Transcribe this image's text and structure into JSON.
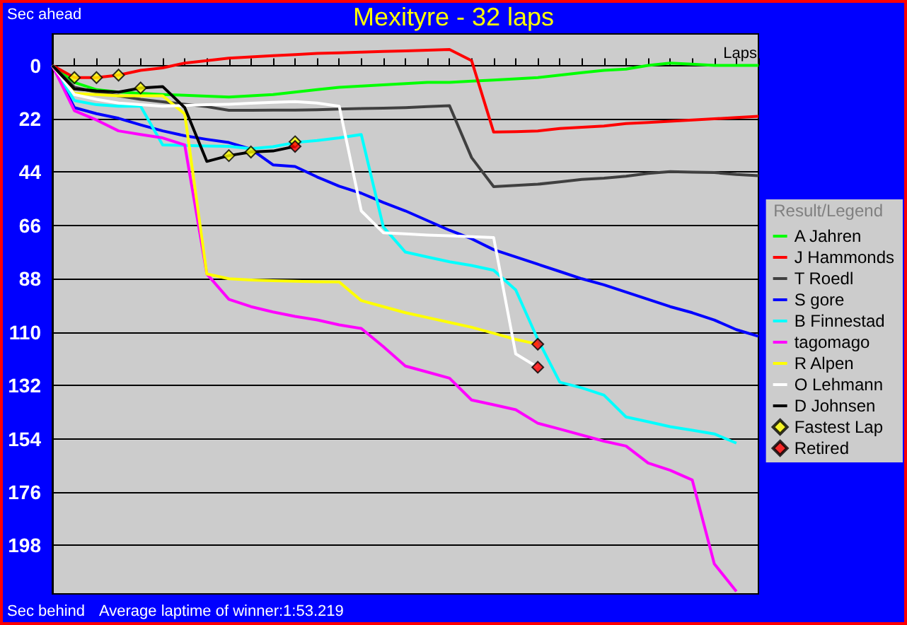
{
  "chart_data": {
    "type": "line",
    "title": "Mexityre - 32 laps",
    "ylabel": "Sec ahead",
    "xlabel": "Laps",
    "legend_title": "Result/Legend",
    "annotations": [
      "Sec behind",
      "Average laptime of winner:1:53.219"
    ],
    "categories": [
      null,
      null,
      null,
      null,
      null,
      null,
      null,
      null,
      null,
      null,
      null,
      null,
      null,
      null,
      null,
      null,
      null,
      null,
      null,
      null,
      null,
      null,
      null,
      null,
      null,
      null,
      null,
      null,
      null,
      null,
      null,
      null,
      null
    ],
    "ylim": [
      218,
      -13
    ],
    "yticks": [
      0,
      22,
      44,
      66,
      88,
      110,
      132,
      154,
      176,
      198
    ],
    "tick_labels": "y",
    "grid": "y",
    "legend": "right",
    "marker": "none",
    "line_style": "solid",
    "series": [
      {
        "name": "A Jahren",
        "color": "#00ff00",
        "values": [
          0,
          7,
          10,
          11,
          11.5,
          12,
          12.3,
          12.7,
          13,
          12.5,
          12,
          11,
          10,
          9,
          8.5,
          8,
          7.5,
          7,
          7,
          6.5,
          6,
          5.5,
          5,
          4,
          3,
          2,
          1.5,
          0,
          -1,
          -0.5,
          0,
          0,
          0
        ]
      },
      {
        "name": "J Hammonds",
        "color": "#ff0000",
        "values": [
          0,
          5,
          5,
          4,
          2,
          1,
          -1,
          -2,
          -3,
          -3.5,
          -4,
          -4.5,
          -5,
          -5.2,
          -5.5,
          -5.8,
          -6,
          -6.3,
          -6.6,
          -2,
          27.5,
          27.3,
          27,
          26,
          25.5,
          25,
          24,
          23.5,
          23,
          22.5,
          22,
          21.5,
          21
        ]
      },
      {
        "name": "T Roedl",
        "color": "#404040",
        "values": [
          0,
          9,
          11,
          12.5,
          14,
          15,
          16,
          17,
          18.5,
          18.5,
          18.4,
          18.4,
          18.3,
          18,
          17.8,
          17.6,
          17.4,
          17,
          16.6,
          38,
          50,
          49.5,
          49,
          48,
          47,
          46.5,
          45.7,
          44.5,
          43.8,
          44,
          44.2,
          45,
          45.5
        ]
      },
      {
        "name": "S gore",
        "color": "#0000ff",
        "values": [
          0,
          17.4,
          19.9,
          21.8,
          24.5,
          27,
          29,
          30.5,
          31.8,
          34.5,
          41,
          41.7,
          46,
          49.8,
          52.7,
          56.5,
          60,
          64,
          68,
          71.5,
          76,
          79,
          82,
          85,
          88,
          90.5,
          93.5,
          96.5,
          99.5,
          102,
          105,
          109,
          111.7
        ]
      },
      {
        "name": "B Finnestad",
        "color": "#00ffff",
        "values": [
          0,
          14.5,
          16.2,
          16.8,
          16.8,
          32.8,
          33,
          33.2,
          33.4,
          34.3,
          33.5,
          31.8,
          31,
          29.9,
          28.5,
          66.6,
          77,
          79,
          81,
          82.5,
          84.5,
          92.6,
          113,
          130.7,
          133,
          136,
          145,
          147,
          149,
          150.5,
          152,
          155.8,
          null
        ]
      },
      {
        "name": "tagomago",
        "color": "#ff00ff",
        "values": [
          0,
          18.7,
          22.5,
          27,
          28.5,
          29.9,
          32.8,
          86,
          96.5,
          99.5,
          101.7,
          103.5,
          105,
          107,
          108.5,
          116,
          124,
          126.5,
          129,
          138,
          140,
          142,
          147.6,
          150,
          152.5,
          155,
          157,
          164,
          167,
          171,
          205.6,
          217,
          null
        ]
      },
      {
        "name": "R Alpen",
        "color": "#ffff00",
        "values": [
          0,
          11.6,
          12,
          12.5,
          12.5,
          12.5,
          20,
          86,
          88,
          88.5,
          88.8,
          89,
          89.2,
          89.3,
          97,
          99.5,
          102,
          104,
          106,
          108,
          110.5,
          113,
          115,
          null,
          null,
          null,
          null,
          null,
          null,
          null,
          null,
          null,
          null
        ]
      },
      {
        "name": "O Lehmann",
        "color": "#ffffff",
        "values": [
          0,
          12,
          14,
          15.5,
          16.2,
          16.8,
          16.5,
          16.2,
          16,
          15.6,
          15.2,
          14.9,
          15.5,
          16.8,
          60,
          69,
          69.5,
          70,
          70.3,
          70.6,
          71,
          119,
          124.5,
          null,
          null,
          null,
          null,
          null,
          null,
          null,
          null,
          null,
          null
        ]
      },
      {
        "name": "D Johnsen",
        "color": "#000000",
        "values": [
          0,
          9.7,
          10.5,
          11,
          9.3,
          8.7,
          17.4,
          39.6,
          37.2,
          35.7,
          35.3,
          33.4,
          null,
          null,
          null,
          null,
          null,
          null,
          null,
          null,
          null,
          null,
          null,
          null,
          null,
          null,
          null,
          null,
          null,
          null,
          null,
          null,
          null
        ]
      },
      {
        "name": "Fastest Lap",
        "type": "scatter",
        "marker": "diamond",
        "color": "#ffff00",
        "values": [
          null,
          5,
          5,
          4,
          9.3,
          null,
          null,
          null,
          37.2,
          35.7,
          null,
          31.5,
          null,
          null,
          null,
          null,
          null,
          null,
          null,
          null,
          null,
          null,
          null,
          null,
          null,
          null,
          null,
          null,
          null,
          null,
          null,
          null,
          null
        ]
      },
      {
        "name": "Retired",
        "type": "scatter",
        "marker": "diamond",
        "color": "#ff0000",
        "values": [
          null,
          null,
          null,
          null,
          null,
          null,
          null,
          null,
          null,
          null,
          null,
          33.4,
          null,
          null,
          null,
          null,
          null,
          null,
          null,
          null,
          null,
          null,
          115,
          null,
          null,
          null,
          null,
          null,
          null,
          null,
          null,
          null,
          null
        ]
      },
      {
        "type": "scatter",
        "marker": "diamond",
        "color": "#ff0000",
        "values": [
          null,
          null,
          null,
          null,
          null,
          null,
          null,
          null,
          null,
          null,
          null,
          null,
          null,
          null,
          null,
          null,
          null,
          null,
          null,
          null,
          null,
          null,
          124.5,
          null,
          null,
          null,
          null,
          null,
          null,
          null,
          null,
          null,
          null
        ]
      }
    ]
  }
}
